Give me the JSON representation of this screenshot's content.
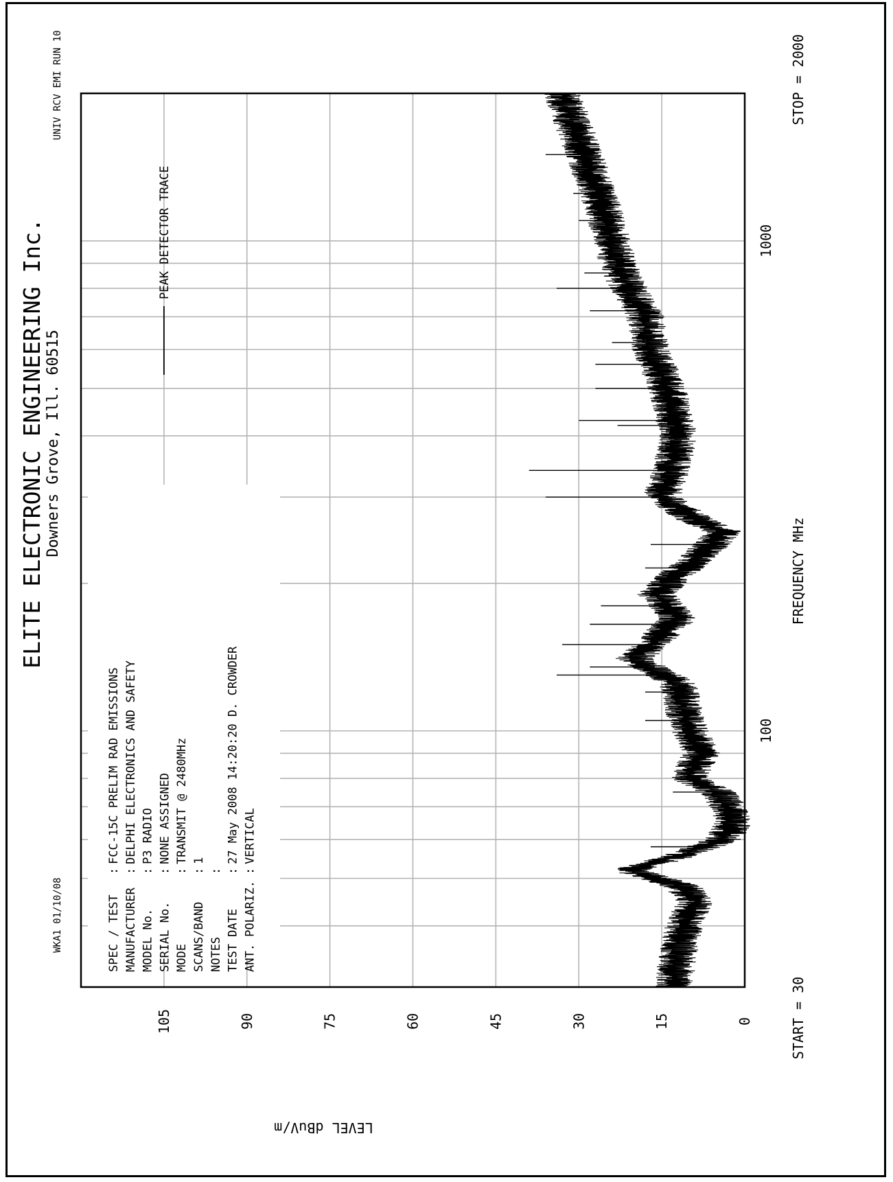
{
  "header": {
    "title": "ELITE ELECTRONIC ENGINEERING Inc.",
    "subtitle": "Downers Grove, Ill. 60515",
    "corner_left": "WKA1  01/10/08",
    "corner_right": "UNIV RCV EMI  RUN 10"
  },
  "test_info": [
    {
      "key": "SPEC / TEST",
      "value": "FCC-15C PRELIM RAD EMISSIONS"
    },
    {
      "key": "MANUFACTURER",
      "value": "DELPHI ELECTRONICS AND SAFETY"
    },
    {
      "key": "MODEL No.",
      "value": "P3 RADIO"
    },
    {
      "key": "SERIAL No.",
      "value": "NONE ASSIGNED"
    },
    {
      "key": "MODE",
      "value": "TRANSMIT @ 2480MHz"
    },
    {
      "key": "SCANS/BAND",
      "value": "1"
    },
    {
      "key": "NOTES",
      "value": ""
    },
    {
      "key": "TEST DATE",
      "value": "27 May 2008 14:20:20  D. CROWDER"
    },
    {
      "key": "ANT. POLARIZ.",
      "value": "VERTICAL"
    }
  ],
  "colors": {
    "grid": "#b4b4b4",
    "trace": "#000000",
    "frame": "#000000"
  },
  "chart_data": {
    "type": "line",
    "x_scale": "log",
    "xlabel": "FREQUENCY  MHz",
    "ylabel": "LEVEL dBuV/m",
    "xlim": [
      30,
      2000
    ],
    "ylim": [
      0,
      120
    ],
    "x_start_label": "START = 30",
    "x_stop_label": "STOP = 2000",
    "x_tick_labels": [
      {
        "value": 100,
        "label": "100"
      },
      {
        "value": 1000,
        "label": "1000"
      }
    ],
    "x_gridlines": [
      40,
      50,
      60,
      70,
      80,
      90,
      100,
      200,
      300,
      400,
      500,
      600,
      700,
      800,
      900,
      1000
    ],
    "y_ticks": [
      0,
      15,
      30,
      45,
      60,
      75,
      90,
      105
    ],
    "legend": {
      "position": "top-right",
      "entries": [
        {
          "label": "PEAK  DETECTOR TRACE"
        }
      ]
    },
    "series": [
      {
        "name": "PEAK  DETECTOR TRACE",
        "band": 3.5,
        "envelope": [
          [
            30,
            13
          ],
          [
            35,
            12
          ],
          [
            40,
            11
          ],
          [
            45,
            9
          ],
          [
            48,
            11
          ],
          [
            52,
            21
          ],
          [
            55,
            13
          ],
          [
            60,
            4
          ],
          [
            65,
            2
          ],
          [
            70,
            3
          ],
          [
            75,
            5
          ],
          [
            80,
            10
          ],
          [
            85,
            9
          ],
          [
            90,
            8
          ],
          [
            100,
            10
          ],
          [
            110,
            11
          ],
          [
            125,
            12
          ],
          [
            140,
            20
          ],
          [
            150,
            17
          ],
          [
            170,
            12
          ],
          [
            190,
            16
          ],
          [
            210,
            12
          ],
          [
            240,
            6
          ],
          [
            255,
            4
          ],
          [
            270,
            9
          ],
          [
            300,
            15
          ],
          [
            350,
            13
          ],
          [
            400,
            12
          ],
          [
            500,
            14
          ],
          [
            600,
            17
          ],
          [
            700,
            18
          ],
          [
            800,
            21
          ],
          [
            900,
            23
          ],
          [
            1000,
            24
          ],
          [
            1200,
            26
          ],
          [
            1500,
            29
          ],
          [
            2000,
            33
          ]
        ],
        "spikes": [
          [
            58,
            17
          ],
          [
            75,
            13
          ],
          [
            85,
            12
          ],
          [
            105,
            18
          ],
          [
            120,
            18
          ],
          [
            130,
            34
          ],
          [
            135,
            28
          ],
          [
            150,
            33
          ],
          [
            165,
            28
          ],
          [
            180,
            26
          ],
          [
            215,
            18
          ],
          [
            240,
            17
          ],
          [
            300,
            36
          ],
          [
            340,
            39
          ],
          [
            420,
            23
          ],
          [
            430,
            30
          ],
          [
            500,
            27
          ],
          [
            560,
            27
          ],
          [
            620,
            24
          ],
          [
            720,
            28
          ],
          [
            800,
            34
          ],
          [
            860,
            29
          ],
          [
            1100,
            30
          ],
          [
            1250,
            31
          ],
          [
            1500,
            36
          ]
        ]
      }
    ]
  }
}
